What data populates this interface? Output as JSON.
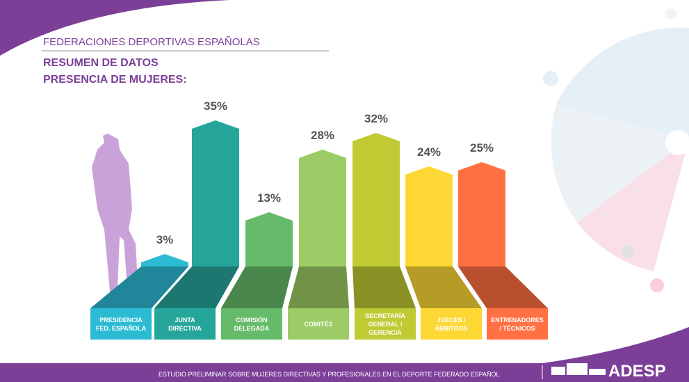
{
  "header": {
    "section": "FEDERACIONES DEPORTIVAS ESPAÑOLAS",
    "title": "RESUMEN DE DATOS",
    "subtitle": "PRESENCIA DE MUJERES:"
  },
  "chart_data": {
    "type": "bar",
    "categories": [
      "PRESIDENCIA FED. ESPAÑOLA",
      "JUNTA DIRECTIVA",
      "COMISIÓN DELEGADA",
      "COMITÉS",
      "SECRETARÍA GENERAL / GERENCIA",
      "JUECES / ÁRBITROS",
      "ENTRENADORES / TÉCNICOS"
    ],
    "values": [
      3,
      35,
      13,
      28,
      32,
      24,
      25
    ],
    "value_labels": [
      "3%",
      "35%",
      "13%",
      "28%",
      "32%",
      "24%",
      "25%"
    ],
    "colors": [
      "#2bbcd4",
      "#26a69a",
      "#66bb6a",
      "#9ccc65",
      "#c0ca33",
      "#fdd835",
      "#ff7043"
    ]
  },
  "footer": {
    "text": "ESTUDIO PRELIMINAR SOBRE MUJERES DIRECTIVAS Y PROFESIONALES EN EL DEPORTE FEDERADO ESPAÑOL",
    "logo": "ADESP"
  }
}
